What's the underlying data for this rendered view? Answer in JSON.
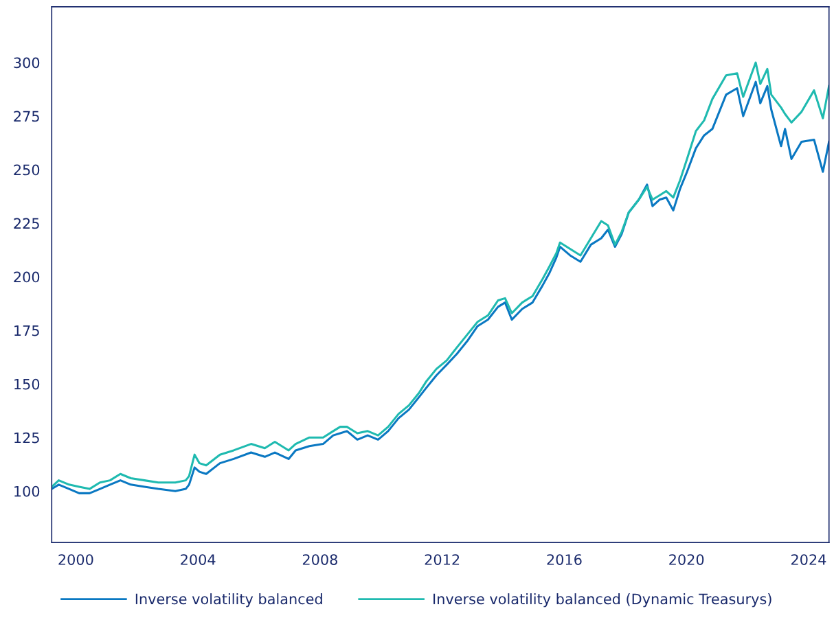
{
  "chart_data": {
    "type": "line",
    "x": [
      1999.21,
      1999.44,
      1999.78,
      2000.11,
      2000.45,
      2000.79,
      2001.12,
      2001.46,
      2001.8,
      2002.25,
      2002.7,
      2003.26,
      2003.6,
      2003.71,
      2003.89,
      2004.05,
      2004.27,
      2004.72,
      2005.17,
      2005.74,
      2006.19,
      2006.52,
      2006.97,
      2007.2,
      2007.65,
      2008.1,
      2008.43,
      2008.66,
      2008.88,
      2009.22,
      2009.56,
      2009.9,
      2010.23,
      2010.57,
      2010.91,
      2011.25,
      2011.47,
      2011.81,
      2012.15,
      2012.48,
      2012.82,
      2013.16,
      2013.5,
      2013.83,
      2014.06,
      2014.28,
      2014.62,
      2014.96,
      2015.29,
      2015.52,
      2015.74,
      2015.86,
      2016.19,
      2016.53,
      2016.87,
      2017.21,
      2017.43,
      2017.66,
      2017.88,
      2018.11,
      2018.44,
      2018.71,
      2018.89,
      2019.12,
      2019.34,
      2019.57,
      2019.79,
      2020.02,
      2020.31,
      2020.58,
      2020.85,
      2021.3,
      2021.66,
      2021.86,
      2022.27,
      2022.42,
      2022.65,
      2022.78,
      2023.1,
      2023.23,
      2023.44,
      2023.77,
      2024.18,
      2024.47,
      2024.67
    ],
    "series": [
      {
        "name": "Inverse volatility balanced",
        "color": "#0a78c2",
        "values": [
          101,
          103,
          101,
          99,
          99,
          101,
          103,
          105,
          103,
          102,
          101,
          100,
          101,
          103,
          111,
          109,
          108,
          113,
          115,
          118,
          116,
          118,
          115,
          119,
          121,
          122,
          126,
          127,
          128,
          124,
          126,
          124,
          128,
          134,
          138,
          144,
          148,
          154,
          159,
          164,
          170,
          177,
          180,
          186,
          188,
          180,
          185,
          188,
          196,
          202,
          209,
          214,
          210,
          207,
          215,
          218,
          222,
          214,
          220,
          230,
          236,
          243,
          233,
          236,
          237,
          231,
          241,
          249,
          260,
          266,
          269,
          285,
          288,
          275,
          291,
          281,
          289,
          278,
          261,
          269,
          255,
          263,
          264,
          249,
          263
        ]
      },
      {
        "name": "Inverse volatility balanced (Dynamic Treasurys)",
        "color": "#1fbab0",
        "values": [
          102,
          105,
          103,
          102,
          101,
          104,
          105,
          108,
          106,
          105,
          104,
          104,
          105,
          107,
          117,
          113,
          112,
          117,
          119,
          122,
          120,
          123,
          119,
          122,
          125,
          125,
          128,
          130,
          130,
          127,
          128,
          126,
          130,
          136,
          140,
          146,
          151,
          157,
          161,
          167,
          173,
          179,
          182,
          189,
          190,
          183,
          188,
          191,
          199,
          205,
          211,
          216,
          213,
          210,
          218,
          226,
          224,
          215,
          221,
          230,
          236,
          242,
          236,
          238,
          240,
          237,
          245,
          255,
          268,
          273,
          283,
          294,
          295,
          284,
          300,
          290,
          297,
          285,
          279,
          276,
          272,
          277,
          287,
          274,
          289
        ]
      }
    ],
    "xlim": [
      1999.21,
      2024.67
    ],
    "xticks": [
      2000,
      2004,
      2008,
      2012,
      2016,
      2020,
      2024
    ],
    "ylim": [
      76,
      326
    ],
    "yticks": [
      100,
      125,
      150,
      175,
      200,
      225,
      250,
      275,
      300
    ],
    "grid": false,
    "legend": "bottom",
    "marker": "none",
    "line_style": "solid"
  }
}
